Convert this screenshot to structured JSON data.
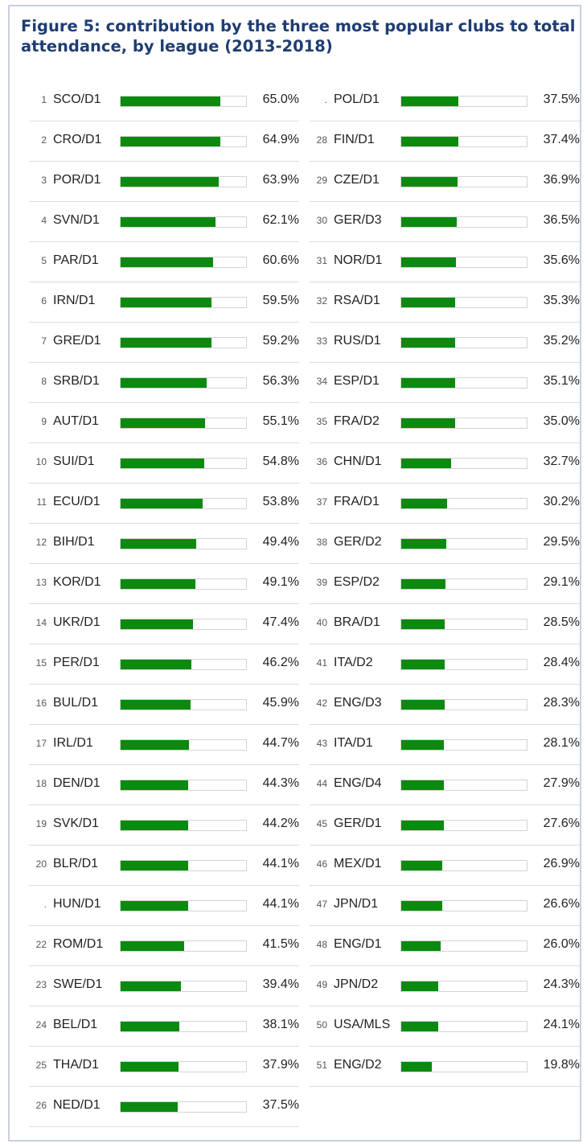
{
  "chart_data": {
    "type": "bar",
    "orientation": "horizontal",
    "title": "Figure 5: contribution by the three most popular clubs to total attendance, by league (2013-2018)",
    "unit": "%",
    "xlim": [
      0,
      100
    ],
    "grid": false,
    "legend": "none",
    "bar_color": "#0b8a0f",
    "title_color": "#1f3d72",
    "rows": [
      {
        "rank": "1",
        "league": "SCO/D1",
        "value": 65.0,
        "label": "65.0%"
      },
      {
        "rank": "2",
        "league": "CRO/D1",
        "value": 64.9,
        "label": "64.9%"
      },
      {
        "rank": "3",
        "league": "POR/D1",
        "value": 63.9,
        "label": "63.9%"
      },
      {
        "rank": "4",
        "league": "SVN/D1",
        "value": 62.1,
        "label": "62.1%"
      },
      {
        "rank": "5",
        "league": "PAR/D1",
        "value": 60.6,
        "label": "60.6%"
      },
      {
        "rank": "6",
        "league": "IRN/D1",
        "value": 59.5,
        "label": "59.5%"
      },
      {
        "rank": "7",
        "league": "GRE/D1",
        "value": 59.2,
        "label": "59.2%"
      },
      {
        "rank": "8",
        "league": "SRB/D1",
        "value": 56.3,
        "label": "56.3%"
      },
      {
        "rank": "9",
        "league": "AUT/D1",
        "value": 55.1,
        "label": "55.1%"
      },
      {
        "rank": "10",
        "league": "SUI/D1",
        "value": 54.8,
        "label": "54.8%"
      },
      {
        "rank": "11",
        "league": "ECU/D1",
        "value": 53.8,
        "label": "53.8%"
      },
      {
        "rank": "12",
        "league": "BIH/D1",
        "value": 49.4,
        "label": "49.4%"
      },
      {
        "rank": "13",
        "league": "KOR/D1",
        "value": 49.1,
        "label": "49.1%"
      },
      {
        "rank": "14",
        "league": "UKR/D1",
        "value": 47.4,
        "label": "47.4%"
      },
      {
        "rank": "15",
        "league": "PER/D1",
        "value": 46.2,
        "label": "46.2%"
      },
      {
        "rank": "16",
        "league": "BUL/D1",
        "value": 45.9,
        "label": "45.9%"
      },
      {
        "rank": "17",
        "league": "IRL/D1",
        "value": 44.7,
        "label": "44.7%"
      },
      {
        "rank": "18",
        "league": "DEN/D1",
        "value": 44.3,
        "label": "44.3%"
      },
      {
        "rank": "19",
        "league": "SVK/D1",
        "value": 44.2,
        "label": "44.2%"
      },
      {
        "rank": "20",
        "league": "BLR/D1",
        "value": 44.1,
        "label": "44.1%"
      },
      {
        "rank": ".",
        "league": "HUN/D1",
        "value": 44.1,
        "label": "44.1%"
      },
      {
        "rank": "22",
        "league": "ROM/D1",
        "value": 41.5,
        "label": "41.5%"
      },
      {
        "rank": "23",
        "league": "SWE/D1",
        "value": 39.4,
        "label": "39.4%"
      },
      {
        "rank": "24",
        "league": "BEL/D1",
        "value": 38.1,
        "label": "38.1%"
      },
      {
        "rank": "25",
        "league": "THA/D1",
        "value": 37.9,
        "label": "37.9%"
      },
      {
        "rank": "26",
        "league": "NED/D1",
        "value": 37.5,
        "label": "37.5%"
      },
      {
        "rank": ".",
        "league": "POL/D1",
        "value": 37.5,
        "label": "37.5%"
      },
      {
        "rank": "28",
        "league": "FIN/D1",
        "value": 37.4,
        "label": "37.4%"
      },
      {
        "rank": "29",
        "league": "CZE/D1",
        "value": 36.9,
        "label": "36.9%"
      },
      {
        "rank": "30",
        "league": "GER/D3",
        "value": 36.5,
        "label": "36.5%"
      },
      {
        "rank": "31",
        "league": "NOR/D1",
        "value": 35.6,
        "label": "35.6%"
      },
      {
        "rank": "32",
        "league": "RSA/D1",
        "value": 35.3,
        "label": "35.3%"
      },
      {
        "rank": "33",
        "league": "RUS/D1",
        "value": 35.2,
        "label": "35.2%"
      },
      {
        "rank": "34",
        "league": "ESP/D1",
        "value": 35.1,
        "label": "35.1%"
      },
      {
        "rank": "35",
        "league": "FRA/D2",
        "value": 35.0,
        "label": "35.0%"
      },
      {
        "rank": "36",
        "league": "CHN/D1",
        "value": 32.7,
        "label": "32.7%"
      },
      {
        "rank": "37",
        "league": "FRA/D1",
        "value": 30.2,
        "label": "30.2%"
      },
      {
        "rank": "38",
        "league": "GER/D2",
        "value": 29.5,
        "label": "29.5%"
      },
      {
        "rank": "39",
        "league": "ESP/D2",
        "value": 29.1,
        "label": "29.1%"
      },
      {
        "rank": "40",
        "league": "BRA/D1",
        "value": 28.5,
        "label": "28.5%"
      },
      {
        "rank": "41",
        "league": "ITA/D2",
        "value": 28.4,
        "label": "28.4%"
      },
      {
        "rank": "42",
        "league": "ENG/D3",
        "value": 28.3,
        "label": "28.3%"
      },
      {
        "rank": "43",
        "league": "ITA/D1",
        "value": 28.1,
        "label": "28.1%"
      },
      {
        "rank": "44",
        "league": "ENG/D4",
        "value": 27.9,
        "label": "27.9%"
      },
      {
        "rank": "45",
        "league": "GER/D1",
        "value": 27.6,
        "label": "27.6%"
      },
      {
        "rank": "46",
        "league": "MEX/D1",
        "value": 26.9,
        "label": "26.9%"
      },
      {
        "rank": "47",
        "league": "JPN/D1",
        "value": 26.6,
        "label": "26.6%"
      },
      {
        "rank": "48",
        "league": "ENG/D1",
        "value": 26.0,
        "label": "26.0%"
      },
      {
        "rank": "49",
        "league": "JPN/D2",
        "value": 24.3,
        "label": "24.3%"
      },
      {
        "rank": "50",
        "league": "USA/MLS",
        "value": 24.1,
        "label": "24.1%"
      },
      {
        "rank": "51",
        "league": "ENG/D2",
        "value": 19.8,
        "label": "19.8%"
      }
    ]
  }
}
